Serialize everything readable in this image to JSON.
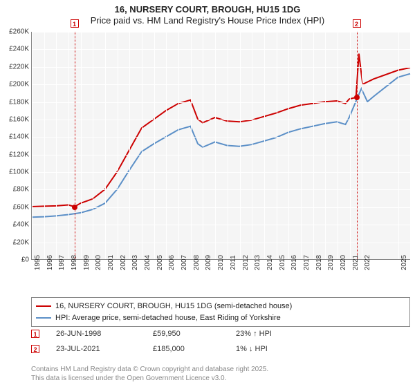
{
  "title": {
    "main": "16, NURSERY COURT, BROUGH, HU15 1DG",
    "sub": "Price paid vs. HM Land Registry's House Price Index (HPI)"
  },
  "chart": {
    "type": "line",
    "background_color": "#f5f5f5",
    "grid_color": "#ffffff",
    "axis_color": "#888888",
    "x": {
      "min": 1995,
      "max": 2026,
      "ticks": [
        1995,
        1996,
        1997,
        1998,
        1999,
        2000,
        2001,
        2002,
        2003,
        2004,
        2005,
        2006,
        2007,
        2008,
        2009,
        2010,
        2011,
        2012,
        2013,
        2014,
        2015,
        2016,
        2017,
        2018,
        2019,
        2020,
        2021,
        2022,
        2025
      ]
    },
    "y": {
      "min": 0,
      "max": 260000,
      "ticks": [
        0,
        20000,
        40000,
        60000,
        80000,
        100000,
        120000,
        140000,
        160000,
        180000,
        200000,
        220000,
        240000,
        260000
      ],
      "tick_labels": [
        "£0",
        "£20K",
        "£40K",
        "£60K",
        "£80K",
        "£100K",
        "£120K",
        "£140K",
        "£160K",
        "£180K",
        "£200K",
        "£220K",
        "£240K",
        "£260K"
      ]
    },
    "series": [
      {
        "name": "16, NURSERY COURT, BROUGH, HU15 1DG (semi-detached house)",
        "color": "#cc0000",
        "width": 2,
        "points": [
          [
            1995,
            60000
          ],
          [
            1996,
            60500
          ],
          [
            1997,
            61000
          ],
          [
            1998,
            62000
          ],
          [
            1998.49,
            59950
          ],
          [
            1999,
            64000
          ],
          [
            2000,
            69000
          ],
          [
            2001,
            80000
          ],
          [
            2002,
            100000
          ],
          [
            2003,
            125000
          ],
          [
            2004,
            150000
          ],
          [
            2005,
            160000
          ],
          [
            2006,
            170000
          ],
          [
            2007,
            178000
          ],
          [
            2008,
            182000
          ],
          [
            2008.6,
            160000
          ],
          [
            2009,
            156000
          ],
          [
            2010,
            162000
          ],
          [
            2011,
            158000
          ],
          [
            2012,
            157000
          ],
          [
            2013,
            159000
          ],
          [
            2014,
            163000
          ],
          [
            2015,
            167000
          ],
          [
            2016,
            172000
          ],
          [
            2017,
            176000
          ],
          [
            2018,
            178000
          ],
          [
            2019,
            180000
          ],
          [
            2020,
            181000
          ],
          [
            2020.7,
            178000
          ],
          [
            2021,
            183000
          ],
          [
            2021.56,
            185000
          ],
          [
            2021.8,
            235000
          ],
          [
            2022.1,
            200000
          ],
          [
            2023,
            206000
          ],
          [
            2025,
            216000
          ],
          [
            2026,
            219000
          ]
        ]
      },
      {
        "name": "HPI: Average price, semi-detached house, East Riding of Yorkshire",
        "color": "#5b8fc7",
        "width": 2,
        "points": [
          [
            1995,
            48000
          ],
          [
            1996,
            48500
          ],
          [
            1997,
            49500
          ],
          [
            1998,
            51000
          ],
          [
            1999,
            53000
          ],
          [
            2000,
            57000
          ],
          [
            2001,
            64000
          ],
          [
            2002,
            80000
          ],
          [
            2003,
            102000
          ],
          [
            2004,
            123000
          ],
          [
            2005,
            132000
          ],
          [
            2006,
            140000
          ],
          [
            2007,
            148000
          ],
          [
            2008,
            152000
          ],
          [
            2008.6,
            132000
          ],
          [
            2009,
            128000
          ],
          [
            2010,
            134000
          ],
          [
            2011,
            130000
          ],
          [
            2012,
            129000
          ],
          [
            2013,
            131000
          ],
          [
            2014,
            135000
          ],
          [
            2015,
            139000
          ],
          [
            2016,
            145000
          ],
          [
            2017,
            149000
          ],
          [
            2018,
            152000
          ],
          [
            2019,
            155000
          ],
          [
            2020,
            157000
          ],
          [
            2020.7,
            154000
          ],
          [
            2021,
            162000
          ],
          [
            2022,
            195000
          ],
          [
            2022.5,
            180000
          ],
          [
            2023,
            186000
          ],
          [
            2025,
            208000
          ],
          [
            2026,
            212000
          ]
        ]
      }
    ],
    "markers": [
      {
        "n": "1",
        "x": 1998.49,
        "y": 59950,
        "label_top": true
      },
      {
        "n": "2",
        "x": 2021.56,
        "y": 185000,
        "label_top": true
      }
    ]
  },
  "legend": {
    "items": [
      {
        "color": "#cc0000",
        "label": "16, NURSERY COURT, BROUGH, HU15 1DG (semi-detached house)"
      },
      {
        "color": "#5b8fc7",
        "label": "HPI: Average price, semi-detached house, East Riding of Yorkshire"
      }
    ]
  },
  "price_points": [
    {
      "n": "1",
      "date": "26-JUN-1998",
      "price": "£59,950",
      "pct": "23% ↑ HPI"
    },
    {
      "n": "2",
      "date": "23-JUL-2021",
      "price": "£185,000",
      "pct": "1% ↓ HPI"
    }
  ],
  "footer": {
    "l1": "Contains HM Land Registry data © Crown copyright and database right 2025.",
    "l2": "This data is licensed under the Open Government Licence v3.0."
  }
}
